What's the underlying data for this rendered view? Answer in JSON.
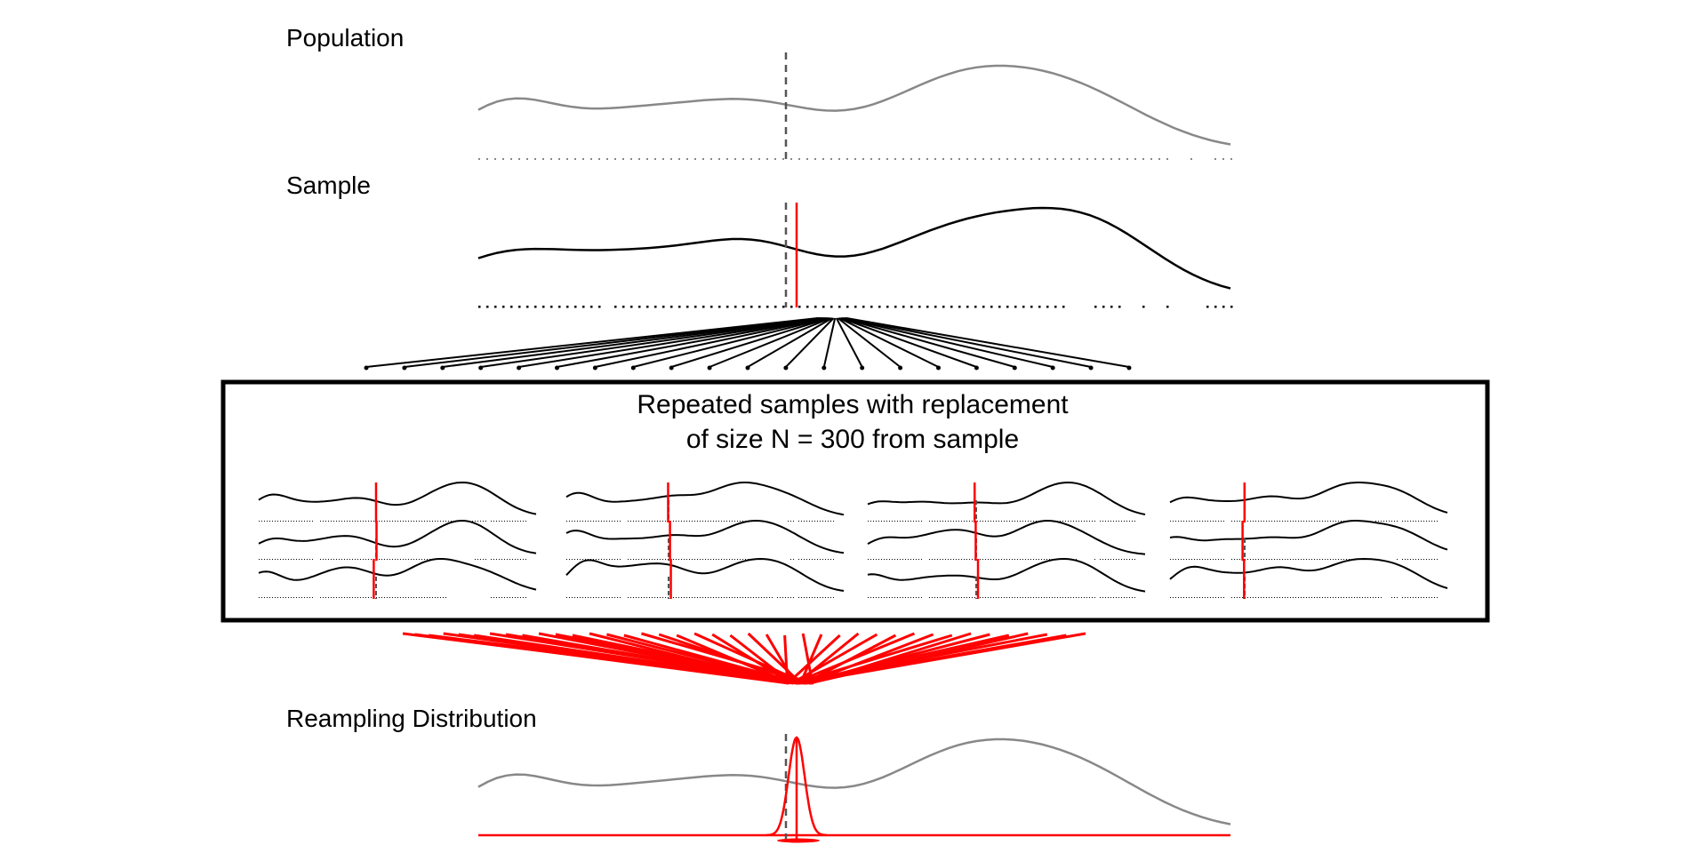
{
  "labels": {
    "population": "Population",
    "sample": "Sample",
    "box_title_line1": "Repeated samples with replacement",
    "box_title_line2": "of size N = 300 from sample",
    "resampling": "Reampling Distribution"
  },
  "colors": {
    "population_curve": "#888888",
    "sample_curve": "#000000",
    "mean_marker": "#ff0000",
    "population_mean": "#555555"
  },
  "resample_grid": {
    "columns": 4,
    "rows": 3
  }
}
